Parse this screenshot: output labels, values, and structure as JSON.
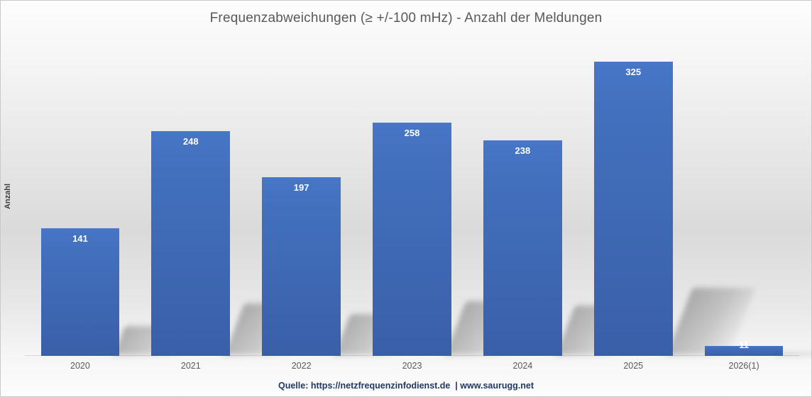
{
  "title": "Frequenzabweichungen (≥ +/-100 mHz) - Anzahl der Meldungen",
  "y_axis_title": "Anzahl",
  "source_line": "Quelle: https://netzfrequenzinfodienst.de  | www.saurugg.net",
  "colors": {
    "bar_top": "#4876c8",
    "bar_bottom": "#3a5fa9",
    "title_text": "#595959",
    "axis_label_text": "#595959",
    "source_text": "#1f3864",
    "value_label_text": "#ffffff"
  },
  "chart_data": {
    "type": "bar",
    "categories": [
      "2020",
      "2021",
      "2022",
      "2023",
      "2024",
      "2025",
      "2026(1)"
    ],
    "values": [
      141,
      248,
      197,
      258,
      238,
      325,
      11
    ],
    "title": "Frequenzabweichungen (≥ +/-100 mHz) - Anzahl der Meldungen",
    "xlabel": "",
    "ylabel": "Anzahl",
    "ylim": [
      0,
      347
    ],
    "grid": false,
    "legend": false,
    "data_label_position": "inside-end",
    "bar_effects": "perspective shadow lower-right, vertical blue gradient"
  }
}
